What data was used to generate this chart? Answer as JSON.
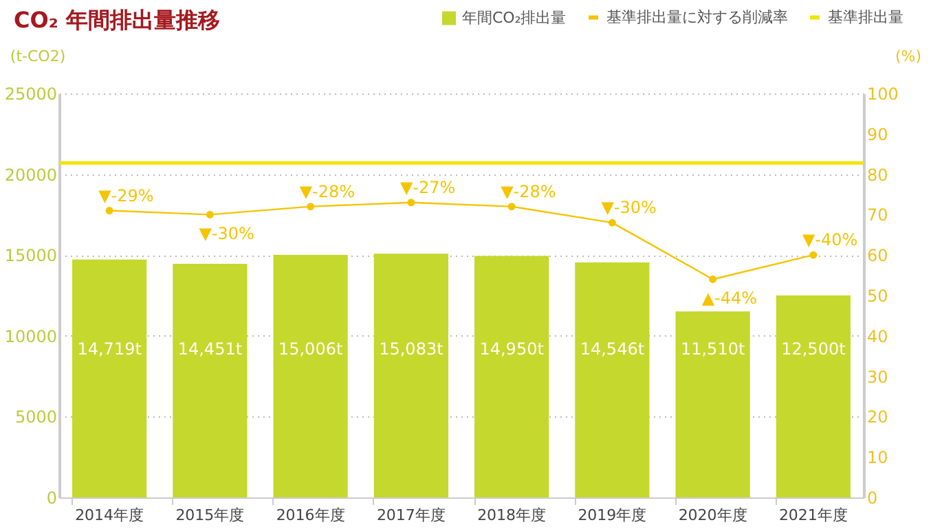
{
  "chart_data": {
    "type": "bar",
    "title": "CO₂ 年間排出量推移",
    "ylabel": "(t-CO2)",
    "y2label": "(%)",
    "categories": [
      "2014年度",
      "2015年度",
      "2016年度",
      "2017年度",
      "2018年度",
      "2019年度",
      "2020年度",
      "2021年度"
    ],
    "series": [
      {
        "name": "年間CO₂排出量",
        "color": "#c5d82e",
        "values": [
          14719,
          14451,
          15006,
          15083,
          14950,
          14546,
          11510,
          12500
        ],
        "value_labels": [
          "14,719t",
          "14,451t",
          "15,006t",
          "15,083t",
          "14,950t",
          "14,546t",
          "11,510t",
          "12,500t"
        ]
      },
      {
        "name": "基準排出量に対する削減率",
        "type": "line",
        "axis": "y2",
        "color": "#f5c400",
        "values": [
          71,
          70,
          72,
          73,
          72,
          68,
          54,
          60
        ]
      }
    ],
    "annotations": [
      {
        "text": "▼-29%",
        "x": "2014年度",
        "y": 17750
      },
      {
        "text": "▼-30%",
        "x": "2015年度",
        "y": 17500
      },
      {
        "text": "▼-28%",
        "x": "2016年度",
        "y": 18000
      },
      {
        "text": "▼-27%",
        "x": "2017年度",
        "y": 18250
      },
      {
        "text": "▼-28%",
        "x": "2018年度",
        "y": 18000
      },
      {
        "text": "▼-30%",
        "x": "2019年度",
        "y": 17000
      },
      {
        "text": "▲-44%",
        "x": "2020年度",
        "y": 13500
      },
      {
        "text": "▼-40%",
        "x": "2021年度",
        "y": 15000
      }
    ],
    "ref_lines": [
      {
        "axis": "y",
        "value": 20700,
        "label": "基準排出量",
        "color": "#f0e600"
      }
    ],
    "ylim": [
      0,
      25000
    ],
    "yticks": [
      0,
      5000,
      10000,
      15000,
      20000,
      25000
    ],
    "y2lim": [
      0,
      100
    ],
    "y2ticks": [
      0,
      10,
      20,
      30,
      40,
      50,
      60,
      70,
      80,
      90,
      100
    ],
    "grid": "y",
    "legend": "top right",
    "marker": "circle"
  }
}
